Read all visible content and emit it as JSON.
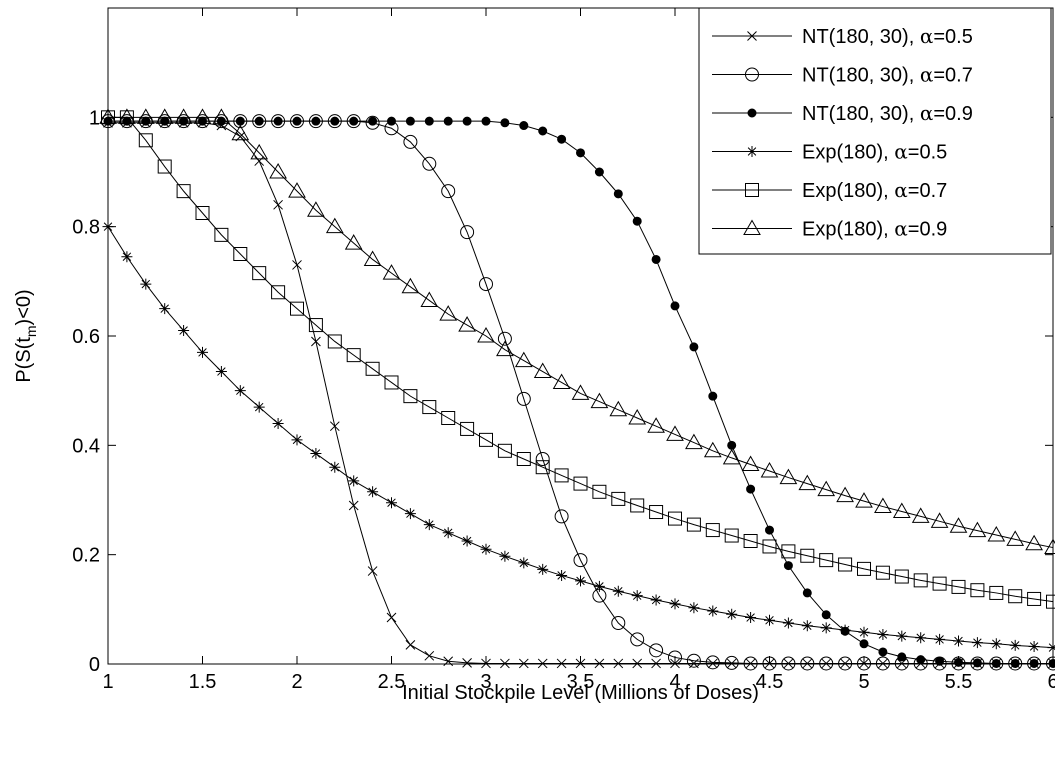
{
  "chart_data": {
    "type": "line",
    "xlabel": "Initial Stockpile Level (Millions of Doses)",
    "ylabel": "P(S(t_m)<0)",
    "ylabel_parts": {
      "pre": "P(S(t",
      "sub": "m",
      "post": ")<0)"
    },
    "xlim": [
      1,
      6
    ],
    "ylim": [
      0,
      1.2
    ],
    "xticks": [
      1,
      1.5,
      2,
      2.5,
      3,
      3.5,
      4,
      4.5,
      5,
      5.5,
      6
    ],
    "xtick_labels": [
      "1",
      "1.5",
      "2",
      "2.5",
      "3",
      "3.5",
      "4",
      "4.5",
      "5",
      "5.5",
      "6"
    ],
    "yticks": [
      0,
      0.2,
      0.4,
      0.6,
      0.8,
      1
    ],
    "ytick_labels": [
      "0",
      "0.2",
      "0.4",
      "0.6",
      "0.8",
      "1"
    ],
    "grid": false,
    "legend_position": "top-right",
    "x": [
      1.0,
      1.1,
      1.2,
      1.3,
      1.4,
      1.5,
      1.6,
      1.7,
      1.8,
      1.9,
      2.0,
      2.1,
      2.2,
      2.3,
      2.4,
      2.5,
      2.6,
      2.7,
      2.8,
      2.9,
      3.0,
      3.1,
      3.2,
      3.3,
      3.4,
      3.5,
      3.6,
      3.7,
      3.8,
      3.9,
      4.0,
      4.1,
      4.2,
      4.3,
      4.4,
      4.5,
      4.6,
      4.7,
      4.8,
      4.9,
      5.0,
      5.1,
      5.2,
      5.3,
      5.4,
      5.5,
      5.6,
      5.7,
      5.8,
      5.9,
      6.0
    ],
    "series": [
      {
        "name": "NT(180, 30), α=0.5",
        "legend_pre": "NT(180, 30), ",
        "legend_post": "=0.5",
        "marker": "x",
        "values": [
          0.99,
          0.99,
          0.99,
          0.99,
          0.99,
          0.99,
          0.985,
          0.965,
          0.92,
          0.84,
          0.73,
          0.59,
          0.435,
          0.29,
          0.17,
          0.085,
          0.035,
          0.015,
          0.005,
          0.002,
          0.001,
          0.001,
          0.001,
          0.001,
          0.001,
          0.001,
          0.001,
          0.001,
          0.001,
          0.001,
          0.001,
          0.001,
          0.001,
          0.001,
          0.001,
          0.001,
          0.001,
          0.001,
          0.001,
          0.001,
          0.001,
          0.001,
          0.001,
          0.001,
          0.001,
          0.001,
          0.001,
          0.001,
          0.001,
          0.001,
          0.001
        ]
      },
      {
        "name": "NT(180, 30), α=0.7",
        "legend_pre": "NT(180, 30), ",
        "legend_post": "=0.7",
        "marker": "circle",
        "values": [
          0.993,
          0.993,
          0.993,
          0.993,
          0.993,
          0.993,
          0.993,
          0.993,
          0.993,
          0.993,
          0.993,
          0.993,
          0.993,
          0.993,
          0.99,
          0.98,
          0.955,
          0.915,
          0.865,
          0.79,
          0.695,
          0.595,
          0.485,
          0.375,
          0.27,
          0.19,
          0.125,
          0.075,
          0.045,
          0.025,
          0.012,
          0.006,
          0.003,
          0.002,
          0.001,
          0.001,
          0.001,
          0.001,
          0.001,
          0.001,
          0.001,
          0.001,
          0.001,
          0.001,
          0.001,
          0.001,
          0.001,
          0.001,
          0.001,
          0.001,
          0.001
        ]
      },
      {
        "name": "NT(180, 30), α=0.9",
        "legend_pre": "NT(180, 30), ",
        "legend_post": "=0.9",
        "marker": "dot",
        "values": [
          0.993,
          0.993,
          0.993,
          0.993,
          0.993,
          0.993,
          0.993,
          0.993,
          0.993,
          0.993,
          0.993,
          0.993,
          0.993,
          0.993,
          0.993,
          0.993,
          0.993,
          0.993,
          0.993,
          0.993,
          0.993,
          0.99,
          0.985,
          0.975,
          0.96,
          0.935,
          0.9,
          0.86,
          0.81,
          0.74,
          0.655,
          0.58,
          0.49,
          0.4,
          0.32,
          0.245,
          0.18,
          0.13,
          0.09,
          0.06,
          0.037,
          0.022,
          0.013,
          0.008,
          0.005,
          0.003,
          0.002,
          0.001,
          0.001,
          0.001,
          0.001
        ]
      },
      {
        "name": "Exp(180), α=0.5",
        "legend_pre": "Exp(180), ",
        "legend_post": "=0.5",
        "marker": "star",
        "values": [
          0.8,
          0.745,
          0.695,
          0.65,
          0.61,
          0.57,
          0.535,
          0.5,
          0.47,
          0.44,
          0.41,
          0.385,
          0.36,
          0.335,
          0.315,
          0.295,
          0.275,
          0.255,
          0.24,
          0.225,
          0.21,
          0.197,
          0.185,
          0.173,
          0.162,
          0.152,
          0.142,
          0.133,
          0.125,
          0.117,
          0.11,
          0.103,
          0.097,
          0.091,
          0.085,
          0.08,
          0.075,
          0.07,
          0.066,
          0.062,
          0.058,
          0.054,
          0.051,
          0.048,
          0.045,
          0.042,
          0.039,
          0.037,
          0.034,
          0.032,
          0.03
        ]
      },
      {
        "name": "Exp(180), α=0.7",
        "legend_pre": "Exp(180), ",
        "legend_post": "=0.7",
        "marker": "square",
        "values": [
          1.0,
          1.0,
          0.958,
          0.91,
          0.865,
          0.825,
          0.785,
          0.75,
          0.715,
          0.68,
          0.65,
          0.62,
          0.59,
          0.565,
          0.54,
          0.515,
          0.49,
          0.47,
          0.45,
          0.43,
          0.41,
          0.39,
          0.375,
          0.36,
          0.345,
          0.33,
          0.315,
          0.302,
          0.29,
          0.278,
          0.266,
          0.255,
          0.245,
          0.235,
          0.225,
          0.215,
          0.206,
          0.198,
          0.19,
          0.182,
          0.174,
          0.167,
          0.16,
          0.153,
          0.147,
          0.141,
          0.135,
          0.13,
          0.124,
          0.119,
          0.114
        ]
      },
      {
        "name": "Exp(180), α=0.9",
        "legend_pre": "Exp(180), ",
        "legend_post": "=0.9",
        "marker": "triangle",
        "values": [
          1.0,
          1.0,
          1.0,
          1.0,
          1.0,
          1.0,
          1.0,
          0.97,
          0.935,
          0.9,
          0.865,
          0.83,
          0.8,
          0.77,
          0.74,
          0.715,
          0.69,
          0.665,
          0.64,
          0.62,
          0.6,
          0.575,
          0.555,
          0.535,
          0.515,
          0.495,
          0.48,
          0.465,
          0.45,
          0.435,
          0.42,
          0.405,
          0.39,
          0.377,
          0.365,
          0.353,
          0.341,
          0.33,
          0.319,
          0.308,
          0.298,
          0.288,
          0.279,
          0.27,
          0.261,
          0.252,
          0.244,
          0.236,
          0.228,
          0.22,
          0.213
        ]
      }
    ]
  }
}
